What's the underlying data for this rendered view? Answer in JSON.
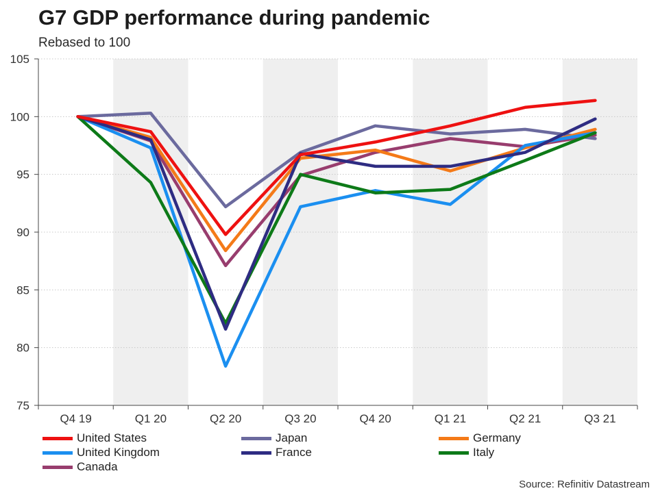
{
  "chart_data": {
    "type": "line",
    "title": "G7 GDP performance during pandemic",
    "subtitle": "Rebased to 100",
    "categories": [
      "Q4 19",
      "Q1 20",
      "Q2 20",
      "Q3 20",
      "Q4 20",
      "Q1 21",
      "Q2 21",
      "Q3 21"
    ],
    "ylim": [
      75,
      105
    ],
    "yticks": [
      75,
      80,
      85,
      90,
      95,
      100,
      105
    ],
    "xlabel": "",
    "ylabel": "",
    "grid": true,
    "shaded_bands": [
      "Q1 20",
      "Q3 20",
      "Q1 21",
      "Q3 21"
    ],
    "legend_position": "bottom",
    "series": [
      {
        "name": "United States",
        "color": "#ee1111",
        "values": [
          100,
          98.7,
          89.8,
          96.7,
          97.8,
          99.2,
          100.8,
          101.4
        ]
      },
      {
        "name": "Japan",
        "color": "#6b6a9e",
        "values": [
          100,
          100.3,
          92.2,
          96.9,
          99.2,
          98.5,
          98.9,
          98.1
        ]
      },
      {
        "name": "Germany",
        "color": "#f47a18",
        "values": [
          100,
          98.2,
          88.4,
          96.4,
          97.1,
          95.3,
          97.3,
          98.9
        ]
      },
      {
        "name": "United Kingdom",
        "color": "#1b8ff0",
        "values": [
          100,
          97.3,
          78.4,
          92.2,
          93.6,
          92.4,
          97.5,
          98.6
        ]
      },
      {
        "name": "France",
        "color": "#2e2c82",
        "values": [
          100,
          98.0,
          81.6,
          96.8,
          95.7,
          95.7,
          96.9,
          99.8
        ]
      },
      {
        "name": "Italy",
        "color": "#0d7a18",
        "values": [
          100,
          94.3,
          82.1,
          95.0,
          93.4,
          93.7,
          96.2,
          98.6
        ]
      },
      {
        "name": "Canada",
        "color": "#983d6e",
        "values": [
          100,
          97.9,
          87.1,
          94.9,
          96.9,
          98.1,
          97.4,
          98.4
        ]
      }
    ],
    "source": "Source: Refinitiv Datastream"
  }
}
